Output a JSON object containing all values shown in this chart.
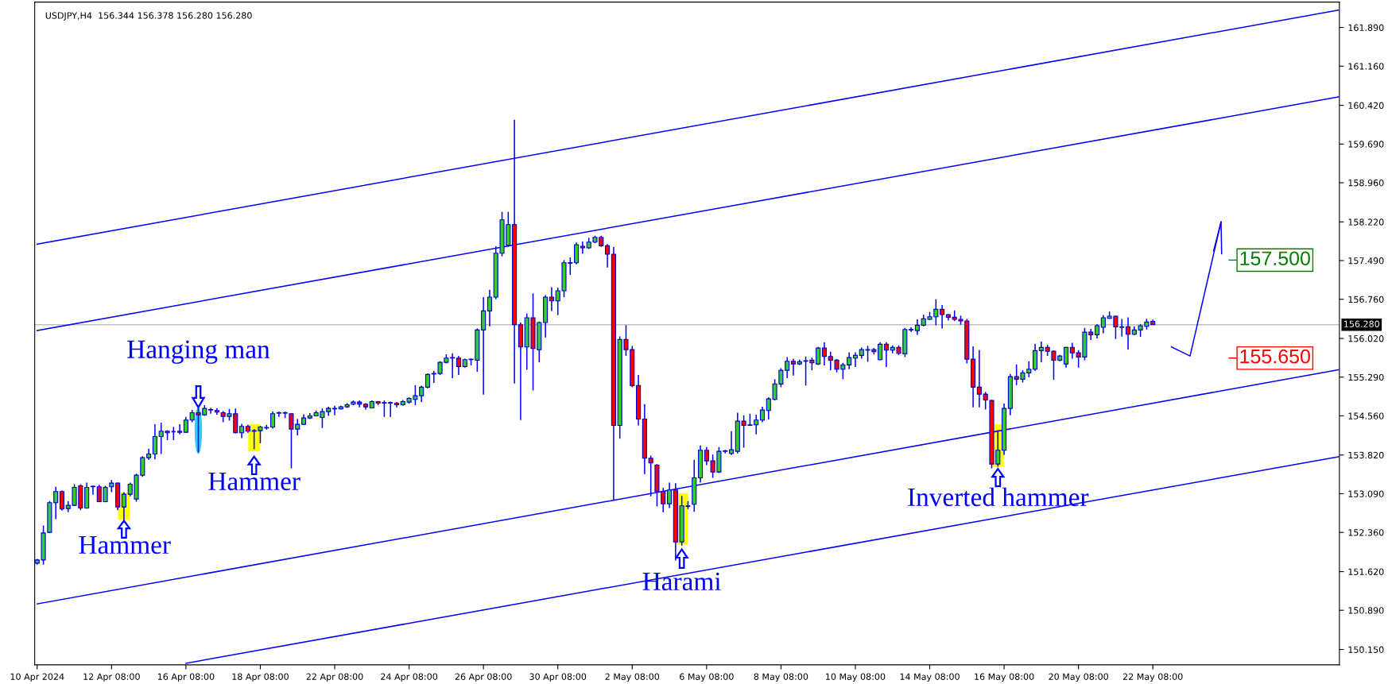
{
  "chart_data": {
    "type": "candlestick",
    "title": "USDJPY,H4  156.344 156.378 156.280 156.280",
    "categories": [
      "10 Apr 2024",
      null,
      null,
      null,
      null,
      null,
      null,
      null,
      null,
      null,
      null,
      null,
      "12 Apr 08:00",
      null,
      null,
      null,
      null,
      null,
      null,
      null,
      null,
      null,
      null,
      null,
      "16 Apr 08:00",
      null,
      null,
      null,
      null,
      null,
      null,
      null,
      null,
      null,
      null,
      null,
      "18 Apr 08:00",
      null,
      null,
      null,
      null,
      null,
      null,
      null,
      null,
      null,
      null,
      null,
      "22 Apr 08:00",
      null,
      null,
      null,
      null,
      null,
      null,
      null,
      null,
      null,
      null,
      null,
      "24 Apr 08:00",
      null,
      null,
      null,
      null,
      null,
      null,
      null,
      null,
      null,
      null,
      null,
      "26 Apr 08:00",
      null,
      null,
      null,
      null,
      null,
      null,
      null,
      null,
      null,
      null,
      null,
      "30 Apr 08:00",
      null,
      null,
      null,
      null,
      null,
      null,
      null,
      null,
      null,
      null,
      null,
      "2 May 08:00",
      null,
      null,
      null,
      null,
      null,
      null,
      null,
      null,
      null,
      null,
      null,
      "6 May 08:00",
      null,
      null,
      null,
      null,
      null,
      null,
      null,
      null,
      null,
      null,
      null,
      "8 May 08:00",
      null,
      null,
      null,
      null,
      null,
      null,
      null,
      null,
      null,
      null,
      null,
      "10 May 08:00",
      null,
      null,
      null,
      null,
      null,
      null,
      null,
      null,
      null,
      null,
      null,
      "14 May 08:00",
      null,
      null,
      null,
      null,
      null,
      null,
      null,
      null,
      null,
      null,
      null,
      "16 May 08:00",
      null,
      null,
      null,
      null,
      null,
      null,
      null,
      null,
      null,
      null,
      null,
      "20 May 08:00",
      null,
      null,
      null,
      null,
      null,
      null,
      null,
      null,
      null,
      null,
      null,
      "22 May 08:00",
      null,
      null,
      null,
      null,
      null,
      null,
      null,
      null,
      null,
      null,
      null,
      null,
      null,
      null,
      null,
      null,
      null,
      null,
      null,
      null,
      null,
      null,
      null,
      null,
      null,
      null,
      null,
      null,
      null,
      null
    ],
    "ohlc": [
      [
        151.78,
        151.86,
        151.75,
        151.84
      ],
      [
        151.84,
        152.49,
        151.75,
        152.35
      ],
      [
        152.36,
        152.95,
        152.35,
        152.92
      ],
      [
        152.92,
        153.22,
        152.61,
        153.13
      ],
      [
        153.13,
        153.15,
        152.77,
        152.8
      ],
      [
        152.81,
        152.95,
        152.74,
        152.87
      ],
      [
        152.87,
        153.27,
        152.86,
        153.21
      ],
      [
        153.24,
        153.27,
        152.78,
        152.82
      ],
      [
        152.82,
        153.3,
        152.81,
        153.21
      ],
      [
        153.22,
        153.24,
        153.07,
        153.23
      ],
      [
        153.22,
        153.26,
        152.94,
        152.94
      ],
      [
        152.94,
        153.24,
        152.93,
        153.21
      ],
      [
        153.22,
        153.35,
        153.12,
        153.29
      ],
      [
        153.29,
        153.3,
        152.78,
        152.84
      ],
      [
        152.84,
        153.12,
        152.58,
        153.08
      ],
      [
        153.08,
        153.3,
        153.04,
        153.27
      ],
      [
        152.99,
        153.47,
        152.94,
        153.44
      ],
      [
        153.44,
        153.8,
        153.41,
        153.77
      ],
      [
        153.77,
        153.94,
        153.73,
        153.84
      ],
      [
        153.84,
        154.4,
        153.74,
        154.17
      ],
      [
        154.17,
        154.43,
        153.84,
        154.27
      ],
      [
        154.27,
        154.29,
        154.1,
        154.24
      ],
      [
        154.26,
        154.35,
        154.1,
        154.26
      ],
      [
        154.25,
        154.4,
        154.21,
        154.27
      ],
      [
        154.25,
        154.54,
        154.24,
        154.48
      ],
      [
        154.48,
        154.67,
        154.44,
        154.62
      ],
      [
        154.62,
        154.7,
        153.87,
        154.58
      ],
      [
        154.58,
        154.76,
        154.56,
        154.7
      ],
      [
        154.68,
        154.71,
        154.6,
        154.67
      ],
      [
        154.66,
        154.7,
        154.58,
        154.63
      ],
      [
        154.62,
        154.65,
        154.44,
        154.55
      ],
      [
        154.55,
        154.69,
        154.47,
        154.6
      ],
      [
        154.6,
        154.7,
        154.23,
        154.24
      ],
      [
        154.24,
        154.41,
        154.14,
        154.36
      ],
      [
        154.36,
        154.39,
        154.24,
        154.27
      ],
      [
        154.27,
        154.31,
        153.93,
        154.28
      ],
      [
        154.28,
        154.37,
        154.04,
        154.35
      ],
      [
        154.33,
        154.39,
        154.3,
        154.34
      ],
      [
        154.35,
        154.64,
        154.32,
        154.6
      ],
      [
        154.61,
        154.64,
        154.54,
        154.62
      ],
      [
        154.62,
        154.64,
        154.52,
        154.61
      ],
      [
        154.6,
        154.61,
        153.57,
        154.31
      ],
      [
        154.31,
        154.5,
        154.19,
        154.4
      ],
      [
        154.4,
        154.59,
        154.39,
        154.52
      ],
      [
        154.52,
        154.61,
        154.5,
        154.56
      ],
      [
        154.56,
        154.66,
        154.55,
        154.62
      ],
      [
        154.53,
        154.7,
        154.33,
        154.64
      ],
      [
        154.64,
        154.73,
        154.56,
        154.7
      ],
      [
        154.69,
        154.75,
        154.57,
        154.7
      ],
      [
        154.69,
        154.75,
        154.68,
        154.73
      ],
      [
        154.73,
        154.8,
        154.71,
        154.77
      ],
      [
        154.78,
        154.85,
        154.76,
        154.82
      ],
      [
        154.82,
        154.85,
        154.72,
        154.78
      ],
      [
        154.78,
        154.8,
        154.68,
        154.73
      ],
      [
        154.71,
        154.85,
        154.7,
        154.83
      ],
      [
        154.83,
        154.84,
        154.76,
        154.8
      ],
      [
        154.8,
        154.85,
        154.54,
        154.81
      ],
      [
        154.81,
        154.83,
        154.54,
        154.8
      ],
      [
        154.8,
        154.82,
        154.72,
        154.77
      ],
      [
        154.77,
        154.86,
        154.75,
        154.83
      ],
      [
        154.82,
        154.91,
        154.79,
        154.89
      ],
      [
        154.87,
        155.14,
        154.76,
        154.94
      ],
      [
        154.94,
        155.13,
        154.82,
        155.1
      ],
      [
        155.1,
        155.36,
        155.08,
        155.34
      ],
      [
        155.35,
        155.41,
        155.18,
        155.36
      ],
      [
        155.36,
        155.59,
        155.33,
        155.57
      ],
      [
        155.57,
        155.72,
        155.55,
        155.65
      ],
      [
        155.65,
        155.74,
        155.27,
        155.66
      ],
      [
        155.65,
        155.69,
        155.33,
        155.49
      ],
      [
        155.49,
        155.64,
        155.47,
        155.62
      ],
      [
        155.62,
        155.64,
        155.51,
        155.63
      ],
      [
        155.61,
        156.21,
        155.39,
        156.18
      ],
      [
        156.18,
        156.8,
        154.96,
        156.54
      ],
      [
        156.54,
        156.94,
        156.25,
        156.8
      ],
      [
        156.8,
        157.76,
        156.76,
        157.63
      ],
      [
        157.63,
        158.41,
        157.57,
        158.26
      ],
      [
        157.78,
        158.41,
        157.75,
        158.17
      ],
      [
        158.17,
        160.15,
        155.17,
        156.28
      ],
      [
        156.28,
        156.32,
        154.48,
        155.86
      ],
      [
        155.86,
        156.49,
        155.43,
        156.41
      ],
      [
        156.41,
        156.87,
        155.04,
        155.83
      ],
      [
        155.81,
        156.34,
        155.57,
        156.32
      ],
      [
        156.32,
        156.84,
        156.04,
        156.8
      ],
      [
        156.8,
        156.99,
        156.54,
        156.73
      ],
      [
        156.73,
        156.98,
        156.46,
        156.92
      ],
      [
        156.92,
        157.5,
        156.8,
        157.45
      ],
      [
        157.44,
        157.55,
        157.22,
        157.45
      ],
      [
        157.45,
        157.83,
        157.42,
        157.79
      ],
      [
        157.76,
        157.85,
        157.62,
        157.73
      ],
      [
        157.73,
        157.92,
        157.71,
        157.84
      ],
      [
        157.84,
        157.96,
        157.82,
        157.93
      ],
      [
        157.93,
        157.96,
        157.75,
        157.77
      ],
      [
        157.77,
        157.8,
        157.36,
        157.61
      ],
      [
        157.61,
        157.75,
        152.97,
        154.38
      ],
      [
        154.38,
        156.06,
        154.13,
        156.0
      ],
      [
        156.0,
        156.27,
        155.69,
        155.81
      ],
      [
        155.81,
        155.88,
        155.1,
        155.13
      ],
      [
        155.13,
        155.33,
        154.38,
        154.5
      ],
      [
        154.5,
        154.78,
        153.46,
        153.76
      ],
      [
        153.76,
        153.81,
        153.04,
        153.67
      ],
      [
        153.63,
        153.65,
        152.85,
        153.13
      ],
      [
        153.13,
        153.2,
        152.74,
        152.9
      ],
      [
        152.9,
        153.3,
        152.82,
        153.16
      ],
      [
        153.16,
        153.29,
        151.83,
        152.18
      ],
      [
        152.18,
        153.05,
        152.11,
        152.86
      ],
      [
        152.86,
        152.95,
        152.8,
        152.85
      ],
      [
        152.89,
        153.73,
        152.75,
        153.39
      ],
      [
        153.39,
        154.0,
        153.3,
        153.91
      ],
      [
        153.91,
        153.97,
        153.63,
        153.71
      ],
      [
        153.71,
        153.83,
        153.39,
        153.5
      ],
      [
        153.5,
        153.97,
        153.48,
        153.89
      ],
      [
        153.89,
        153.92,
        153.85,
        153.9
      ],
      [
        153.85,
        154.27,
        153.82,
        153.92
      ],
      [
        153.89,
        154.62,
        153.85,
        154.46
      ],
      [
        154.46,
        154.57,
        153.96,
        154.38
      ],
      [
        154.38,
        154.6,
        154.37,
        154.39
      ],
      [
        154.39,
        154.58,
        154.21,
        154.48
      ],
      [
        154.48,
        154.73,
        154.44,
        154.67
      ],
      [
        154.66,
        154.91,
        154.49,
        154.88
      ],
      [
        154.87,
        155.25,
        154.85,
        155.16
      ],
      [
        155.16,
        155.46,
        155.1,
        155.42
      ],
      [
        155.42,
        155.67,
        155.27,
        155.59
      ],
      [
        155.59,
        155.64,
        155.32,
        155.54
      ],
      [
        155.54,
        155.62,
        155.52,
        155.58
      ],
      [
        155.59,
        155.68,
        155.13,
        155.6
      ],
      [
        155.61,
        155.66,
        155.42,
        155.56
      ],
      [
        155.54,
        155.86,
        155.52,
        155.84
      ],
      [
        155.84,
        155.95,
        155.51,
        155.68
      ],
      [
        155.68,
        155.77,
        155.42,
        155.61
      ],
      [
        155.61,
        155.63,
        155.38,
        155.44
      ],
      [
        155.44,
        155.56,
        155.25,
        155.52
      ],
      [
        155.52,
        155.76,
        155.44,
        155.66
      ],
      [
        155.65,
        155.76,
        155.48,
        155.7
      ],
      [
        155.7,
        155.85,
        155.64,
        155.81
      ],
      [
        155.8,
        155.88,
        155.58,
        155.81
      ],
      [
        155.81,
        155.84,
        155.72,
        155.77
      ],
      [
        155.62,
        155.95,
        155.61,
        155.91
      ],
      [
        155.91,
        155.95,
        155.48,
        155.8
      ],
      [
        155.8,
        155.89,
        155.74,
        155.85
      ],
      [
        155.85,
        155.89,
        155.71,
        155.74
      ],
      [
        155.73,
        156.22,
        155.67,
        156.19
      ],
      [
        156.18,
        156.23,
        156.14,
        156.19
      ],
      [
        156.17,
        156.38,
        156.09,
        156.27
      ],
      [
        156.27,
        156.47,
        156.25,
        156.39
      ],
      [
        156.38,
        156.52,
        156.37,
        156.43
      ],
      [
        156.43,
        156.76,
        156.27,
        156.57
      ],
      [
        156.57,
        156.65,
        156.21,
        156.47
      ],
      [
        156.47,
        156.48,
        156.36,
        156.42
      ],
      [
        156.42,
        156.55,
        156.35,
        156.38
      ],
      [
        156.38,
        156.45,
        156.28,
        156.35
      ],
      [
        156.35,
        156.39,
        155.55,
        155.63
      ],
      [
        155.63,
        155.87,
        154.72,
        155.1
      ],
      [
        155.1,
        155.8,
        154.72,
        154.97
      ],
      [
        154.97,
        155.01,
        154.68,
        154.86
      ],
      [
        154.85,
        154.86,
        153.57,
        153.65
      ],
      [
        153.65,
        154.29,
        153.6,
        153.91
      ],
      [
        153.91,
        154.79,
        153.82,
        154.7
      ],
      [
        154.7,
        155.35,
        154.57,
        155.3
      ],
      [
        155.3,
        155.53,
        155.14,
        155.25
      ],
      [
        155.25,
        155.42,
        155.19,
        155.37
      ],
      [
        155.37,
        155.59,
        155.29,
        155.44
      ],
      [
        155.44,
        155.92,
        155.41,
        155.79
      ],
      [
        155.79,
        155.96,
        155.57,
        155.85
      ],
      [
        155.85,
        155.9,
        155.69,
        155.78
      ],
      [
        155.78,
        155.79,
        155.24,
        155.61
      ],
      [
        155.61,
        155.71,
        155.59,
        155.69
      ],
      [
        155.54,
        155.86,
        155.47,
        155.85
      ],
      [
        155.85,
        155.94,
        155.64,
        155.75
      ],
      [
        155.75,
        155.8,
        155.47,
        155.67
      ],
      [
        155.67,
        156.22,
        155.61,
        156.14
      ],
      [
        156.14,
        156.2,
        155.99,
        156.09
      ],
      [
        156.09,
        156.29,
        156.02,
        156.26
      ],
      [
        156.23,
        156.46,
        156.12,
        156.41
      ],
      [
        156.4,
        156.53,
        156.39,
        156.44
      ],
      [
        156.44,
        156.45,
        156.01,
        156.24
      ],
      [
        156.24,
        156.39,
        156.06,
        156.23
      ],
      [
        156.24,
        156.42,
        155.81,
        156.1
      ],
      [
        156.1,
        156.25,
        156.08,
        156.18
      ],
      [
        156.18,
        156.29,
        156.05,
        156.26
      ],
      [
        156.25,
        156.39,
        156.19,
        156.33
      ],
      [
        156.344,
        156.378,
        156.28,
        156.28
      ],
      null,
      null,
      null,
      null,
      null,
      null,
      null,
      null,
      null,
      null,
      null,
      null,
      null,
      null,
      null,
      null,
      null,
      null,
      null,
      null,
      null,
      null,
      null,
      null,
      null,
      null,
      null,
      null,
      null,
      null
    ],
    "series": [
      {
        "type": "line",
        "color": "#0000ff",
        "values": [
          157.8,
          null,
          null,
          null,
          null,
          null,
          null,
          null,
          null,
          null,
          null,
          null,
          null,
          null,
          null,
          null,
          null,
          null,
          null,
          null,
          null,
          null,
          null,
          null,
          null,
          null,
          null,
          null,
          null,
          null,
          null,
          null,
          null,
          null,
          null,
          null,
          null,
          null,
          null,
          null,
          null,
          null,
          null,
          null,
          null,
          null,
          null,
          null,
          null,
          null,
          null,
          null,
          null,
          null,
          null,
          null,
          null,
          null,
          null,
          null,
          null,
          null,
          null,
          null,
          null,
          null,
          null,
          null,
          null,
          null,
          null,
          null,
          null,
          null,
          null,
          null,
          null,
          null,
          null,
          null,
          null,
          null,
          null,
          null,
          null,
          null,
          null,
          null,
          null,
          null,
          null,
          null,
          null,
          null,
          null,
          null,
          null,
          null,
          null,
          null,
          null,
          null,
          null,
          null,
          null,
          null,
          null,
          null,
          null,
          null,
          null,
          null,
          null,
          null,
          null,
          null,
          null,
          null,
          null,
          null,
          null,
          null,
          null,
          null,
          null,
          null,
          null,
          null,
          null,
          null,
          null,
          null,
          null,
          null,
          null,
          null,
          null,
          null,
          null,
          null,
          null,
          null,
          null,
          null,
          null,
          null,
          null,
          null,
          null,
          null,
          null,
          null,
          null,
          null,
          null,
          null,
          null,
          null,
          null,
          null,
          null,
          null,
          null,
          null,
          null,
          null,
          null,
          null,
          null,
          null,
          null,
          null,
          null,
          null,
          null,
          null,
          null,
          null,
          null,
          null,
          null,
          null,
          null,
          null,
          null,
          null,
          null,
          null,
          null,
          null,
          null,
          null,
          null,
          null,
          null,
          null,
          null,
          null,
          null,
          null,
          null,
          null,
          null,
          null,
          null,
          null,
          null,
          null,
          null,
          null,
          162.22
        ]
      },
      {
        "type": "line",
        "color": "#0000ff",
        "values": [
          156.17,
          null,
          null,
          null,
          null,
          null,
          null,
          null,
          null,
          null,
          null,
          null,
          null,
          null,
          null,
          null,
          null,
          null,
          null,
          null,
          null,
          null,
          null,
          null,
          null,
          null,
          null,
          null,
          null,
          null,
          null,
          null,
          null,
          null,
          null,
          null,
          null,
          null,
          null,
          null,
          null,
          null,
          null,
          null,
          null,
          null,
          null,
          null,
          null,
          null,
          null,
          null,
          null,
          null,
          null,
          null,
          null,
          null,
          null,
          null,
          null,
          null,
          null,
          null,
          null,
          null,
          null,
          null,
          null,
          null,
          null,
          null,
          null,
          null,
          null,
          null,
          null,
          null,
          null,
          null,
          null,
          null,
          null,
          null,
          null,
          null,
          null,
          null,
          null,
          null,
          null,
          null,
          null,
          null,
          null,
          null,
          null,
          null,
          null,
          null,
          null,
          null,
          null,
          null,
          null,
          null,
          null,
          null,
          null,
          null,
          null,
          null,
          null,
          null,
          null,
          null,
          null,
          null,
          null,
          null,
          null,
          null,
          null,
          null,
          null,
          null,
          null,
          null,
          null,
          null,
          null,
          null,
          null,
          null,
          null,
          null,
          null,
          null,
          null,
          null,
          null,
          null,
          null,
          null,
          null,
          null,
          null,
          null,
          null,
          null,
          null,
          null,
          null,
          null,
          null,
          null,
          null,
          null,
          null,
          null,
          null,
          null,
          null,
          null,
          null,
          null,
          null,
          null,
          null,
          null,
          null,
          null,
          null,
          null,
          null,
          null,
          null,
          null,
          null,
          null,
          null,
          null,
          null,
          null,
          null,
          null,
          null,
          null,
          null,
          null,
          null,
          null,
          null,
          null,
          null,
          null,
          null,
          null,
          null,
          null,
          null,
          null,
          null,
          null,
          null,
          null,
          null,
          null,
          null,
          null,
          160.58
        ]
      },
      {
        "type": "line",
        "color": "#0000ff",
        "values": [
          151.01,
          null,
          null,
          null,
          null,
          null,
          null,
          null,
          null,
          null,
          null,
          null,
          null,
          null,
          null,
          null,
          null,
          null,
          null,
          null,
          null,
          null,
          null,
          null,
          null,
          null,
          null,
          null,
          null,
          null,
          null,
          null,
          null,
          null,
          null,
          null,
          null,
          null,
          null,
          null,
          null,
          null,
          null,
          null,
          null,
          null,
          null,
          null,
          null,
          null,
          null,
          null,
          null,
          null,
          null,
          null,
          null,
          null,
          null,
          null,
          null,
          null,
          null,
          null,
          null,
          null,
          null,
          null,
          null,
          null,
          null,
          null,
          null,
          null,
          null,
          null,
          null,
          null,
          null,
          null,
          null,
          null,
          null,
          null,
          null,
          null,
          null,
          null,
          null,
          null,
          null,
          null,
          null,
          null,
          null,
          null,
          null,
          null,
          null,
          null,
          null,
          null,
          null,
          null,
          null,
          null,
          null,
          null,
          null,
          null,
          null,
          null,
          null,
          null,
          null,
          null,
          null,
          null,
          null,
          null,
          null,
          null,
          null,
          null,
          null,
          null,
          null,
          null,
          null,
          null,
          null,
          null,
          null,
          null,
          null,
          null,
          null,
          null,
          null,
          null,
          null,
          null,
          null,
          null,
          null,
          null,
          null,
          null,
          null,
          null,
          null,
          null,
          null,
          null,
          null,
          null,
          null,
          null,
          null,
          null,
          null,
          null,
          null,
          null,
          null,
          null,
          null,
          null,
          null,
          null,
          null,
          null,
          null,
          null,
          null,
          null,
          null,
          null,
          null,
          null,
          null,
          null,
          null,
          null,
          null,
          null,
          null,
          null,
          null,
          null,
          null,
          null,
          null,
          null,
          null,
          null,
          null,
          null,
          null,
          null,
          null,
          null,
          null,
          null,
          null,
          null,
          null,
          null,
          null,
          null,
          155.43
        ]
      },
      {
        "type": "line",
        "color": "#0000ff",
        "values": [
          null,
          null,
          null,
          null,
          null,
          null,
          null,
          null,
          null,
          null,
          null,
          null,
          null,
          null,
          null,
          null,
          null,
          null,
          null,
          null,
          null,
          null,
          null,
          null,
          149.89,
          null,
          null,
          null,
          null,
          null,
          null,
          null,
          null,
          null,
          null,
          null,
          null,
          null,
          null,
          null,
          null,
          null,
          null,
          null,
          null,
          null,
          null,
          null,
          null,
          null,
          null,
          null,
          null,
          null,
          null,
          null,
          null,
          null,
          null,
          null,
          null,
          null,
          null,
          null,
          null,
          null,
          null,
          null,
          null,
          null,
          null,
          null,
          null,
          null,
          null,
          null,
          null,
          null,
          null,
          null,
          null,
          null,
          null,
          null,
          null,
          null,
          null,
          null,
          null,
          null,
          null,
          null,
          null,
          null,
          null,
          null,
          null,
          null,
          null,
          null,
          null,
          null,
          null,
          null,
          null,
          null,
          null,
          null,
          null,
          null,
          null,
          null,
          null,
          null,
          null,
          null,
          null,
          null,
          null,
          null,
          null,
          null,
          null,
          null,
          null,
          null,
          null,
          null,
          null,
          null,
          null,
          null,
          null,
          null,
          null,
          null,
          null,
          null,
          null,
          null,
          null,
          null,
          null,
          null,
          null,
          null,
          null,
          null,
          null,
          null,
          null,
          null,
          null,
          null,
          null,
          null,
          null,
          null,
          null,
          null,
          null,
          null,
          null,
          null,
          null,
          null,
          null,
          null,
          null,
          null,
          null,
          null,
          null,
          null,
          null,
          null,
          null,
          null,
          null,
          null,
          null,
          null,
          null,
          null,
          null,
          null,
          null,
          null,
          null,
          null,
          null,
          null,
          null,
          null,
          null,
          null,
          null,
          null,
          null,
          null,
          null,
          null,
          null,
          null,
          null,
          null,
          null,
          null,
          null,
          null,
          153.79
        ]
      },
      {
        "type": "line",
        "color": "#0000ff",
        "values": [
          null,
          null,
          null,
          null,
          null,
          null,
          null,
          null,
          null,
          null,
          null,
          null,
          null,
          null,
          null,
          null,
          null,
          null,
          null,
          null,
          null,
          null,
          null,
          null,
          null,
          null,
          null,
          null,
          null,
          null,
          null,
          null,
          null,
          null,
          null,
          null,
          null,
          null,
          null,
          null,
          null,
          null,
          null,
          null,
          null,
          null,
          null,
          null,
          null,
          null,
          null,
          null,
          null,
          null,
          null,
          null,
          null,
          null,
          null,
          null,
          null,
          null,
          null,
          null,
          null,
          null,
          null,
          null,
          null,
          null,
          null,
          null,
          null,
          null,
          null,
          null,
          null,
          null,
          null,
          null,
          null,
          null,
          null,
          null,
          null,
          null,
          null,
          null,
          null,
          null,
          null,
          null,
          null,
          null,
          null,
          null,
          null,
          null,
          null,
          null,
          null,
          null,
          null,
          null,
          null,
          null,
          null,
          null,
          null,
          null,
          null,
          null,
          null,
          null,
          null,
          null,
          null,
          null,
          null,
          null,
          null,
          null,
          null,
          null,
          null,
          null,
          null,
          null,
          null,
          null,
          null,
          null,
          null,
          null,
          null,
          null,
          null,
          null,
          null,
          null,
          null,
          null,
          null,
          null,
          null,
          null,
          null,
          null,
          null,
          null,
          null,
          null,
          null,
          null,
          null,
          null,
          null,
          null,
          null,
          null,
          null,
          null,
          null,
          null,
          null,
          null,
          null,
          null,
          null,
          null,
          null,
          null,
          null,
          null,
          null,
          null,
          null,
          null,
          null,
          null,
          null,
          null,
          null,
          155.86,
          null,
          null,
          155.69,
          null,
          null,
          null,
          null,
          158.22,
          null,
          null,
          null,
          null,
          null,
          null,
          null,
          null,
          null,
          null,
          null,
          null,
          null,
          null,
          null,
          null,
          null,
          null,
          null
        ]
      }
    ],
    "ylim": [
      149.86,
      162.37
    ],
    "yticks": [
      {
        "value": 150.15,
        "label": "150.150"
      },
      {
        "value": 150.89,
        "label": "150.890"
      },
      {
        "value": 151.62,
        "label": "151.620"
      },
      {
        "value": 152.36,
        "label": "152.360"
      },
      {
        "value": 153.09,
        "label": "153.090"
      },
      {
        "value": 153.82,
        "label": "153.820"
      },
      {
        "value": 154.56,
        "label": "154.560"
      },
      {
        "value": 155.29,
        "label": "155.290"
      },
      {
        "value": 156.02,
        "label": "156.020"
      },
      {
        "value": 156.76,
        "label": "156.760"
      },
      {
        "value": 157.49,
        "label": "157.490"
      },
      {
        "value": 158.22,
        "label": "158.220"
      },
      {
        "value": 158.96,
        "label": "158.960"
      },
      {
        "value": 159.69,
        "label": "159.690"
      },
      {
        "value": 160.42,
        "label": "160.420"
      },
      {
        "value": 161.16,
        "label": "161.160"
      },
      {
        "value": 161.89,
        "label": "161.890"
      }
    ],
    "ref_lines": [
      {
        "axis": "y",
        "value": 156.28,
        "label": "156.280",
        "color": "#c0c0c0"
      }
    ],
    "annotations": [
      "Hanging man",
      "Hammer",
      "Hammer",
      "Harami",
      "Inverted hammer",
      "157.500",
      "155.650"
    ],
    "grid": false,
    "legend": false
  }
}
